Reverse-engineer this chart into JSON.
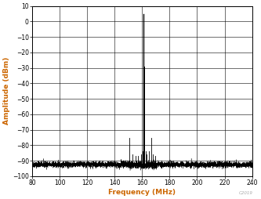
{
  "title": "",
  "xlabel": "Frequency (MHz)",
  "ylabel": "Amplitude (dBm)",
  "xlim": [
    80,
    240
  ],
  "ylim": [
    -100,
    10
  ],
  "xticks": [
    80,
    100,
    120,
    140,
    160,
    180,
    200,
    220,
    240
  ],
  "yticks": [
    -100,
    -90,
    -80,
    -70,
    -60,
    -50,
    -40,
    -30,
    -20,
    -10,
    0,
    10
  ],
  "noise_floor": -92.5,
  "noise_std": 1.0,
  "main_peak_freq": 161.1328125,
  "main_peak_amp": 5,
  "secondary_peaks": [
    {
      "freq": 150.5,
      "amp": -75
    },
    {
      "freq": 153.0,
      "amp": -86
    },
    {
      "freq": 155.0,
      "amp": -87
    },
    {
      "freq": 157.0,
      "amp": -87
    },
    {
      "freq": 159.5,
      "amp": -86
    },
    {
      "freq": 160.5,
      "amp": -84
    },
    {
      "freq": 162.5,
      "amp": -84
    },
    {
      "freq": 163.5,
      "amp": -86
    },
    {
      "freq": 165.0,
      "amp": -84
    },
    {
      "freq": 166.5,
      "amp": -75
    },
    {
      "freq": 168.0,
      "amp": -86
    },
    {
      "freq": 169.5,
      "amp": -87
    }
  ],
  "main_peak_secondary": {
    "freq": 161.5,
    "amp": -29
  },
  "line_color": "#000000",
  "axis_label_color": "#cc6600",
  "tick_label_color": "#000000",
  "background_color": "#ffffff",
  "grid_color": "#888888",
  "watermark": "C2019",
  "noise_seed": 42,
  "figsize": [
    3.33,
    2.54
  ],
  "dpi": 100
}
